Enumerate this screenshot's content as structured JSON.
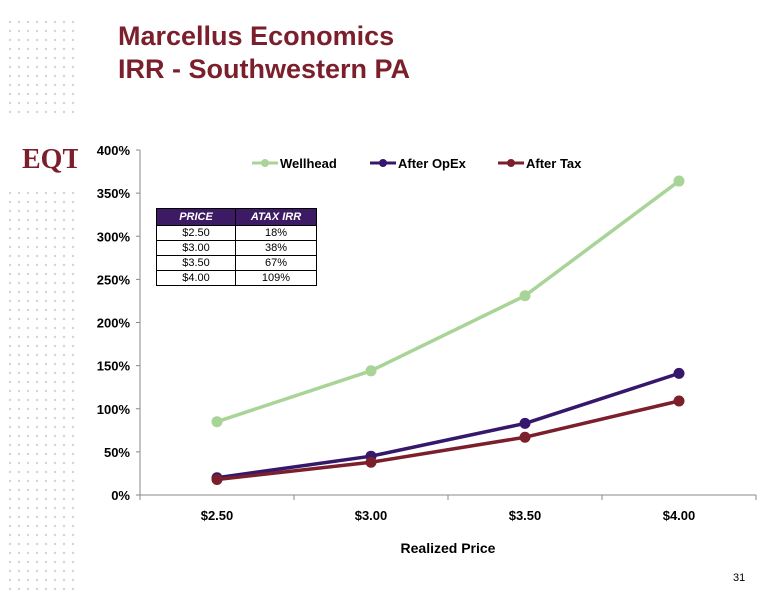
{
  "title_line1": "Marcellus Economics",
  "title_line2": "IRR - Southwestern PA",
  "logo_text": "EQT",
  "page_number": "31",
  "colors": {
    "title": "#7a1f2b",
    "wellhead": "#a8d597",
    "after_opex": "#35176b",
    "after_tax": "#7a1f2b",
    "table_header": "#3c1a64",
    "dots": "#d4d4d4"
  },
  "table": {
    "headers": [
      "PRICE",
      "ATAX IRR"
    ],
    "rows": [
      [
        "$2.50",
        "18%"
      ],
      [
        "$3.00",
        "38%"
      ],
      [
        "$3.50",
        "67%"
      ],
      [
        "$4.00",
        "109%"
      ]
    ]
  },
  "chart_data": {
    "type": "line",
    "title": "",
    "xlabel": "Realized Price",
    "ylabel": "",
    "categories": [
      "$2.50",
      "$3.00",
      "$3.50",
      "$4.00"
    ],
    "ylim": [
      0,
      4
    ],
    "yticks": [
      "0%",
      "50%",
      "100%",
      "150%",
      "200%",
      "250%",
      "300%",
      "350%",
      "400%"
    ],
    "grid": false,
    "legend_position": "top",
    "series": [
      {
        "name": "Wellhead",
        "values": [
          0.85,
          1.44,
          2.31,
          3.64
        ],
        "color": "#a8d597"
      },
      {
        "name": "After OpEx",
        "values": [
          0.2,
          0.45,
          0.83,
          1.41
        ],
        "color": "#35176b"
      },
      {
        "name": "After Tax",
        "values": [
          0.18,
          0.38,
          0.67,
          1.09
        ],
        "color": "#7a1f2b"
      }
    ]
  }
}
